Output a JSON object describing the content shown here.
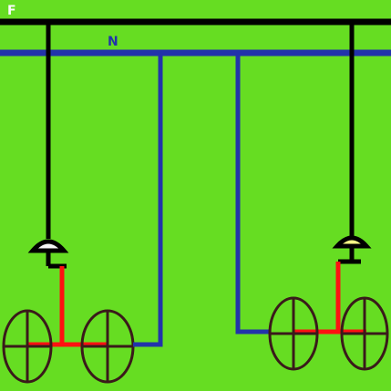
{
  "diagram": {
    "phase_label": "F",
    "neutral_label": "N",
    "colors": {
      "background": "#66dd22",
      "phase": "#000000",
      "neutral": "#2233aa",
      "switched": "#ff1111",
      "lamp_outline": "#3a1a1a",
      "switch_fill": "#ffff88"
    }
  }
}
